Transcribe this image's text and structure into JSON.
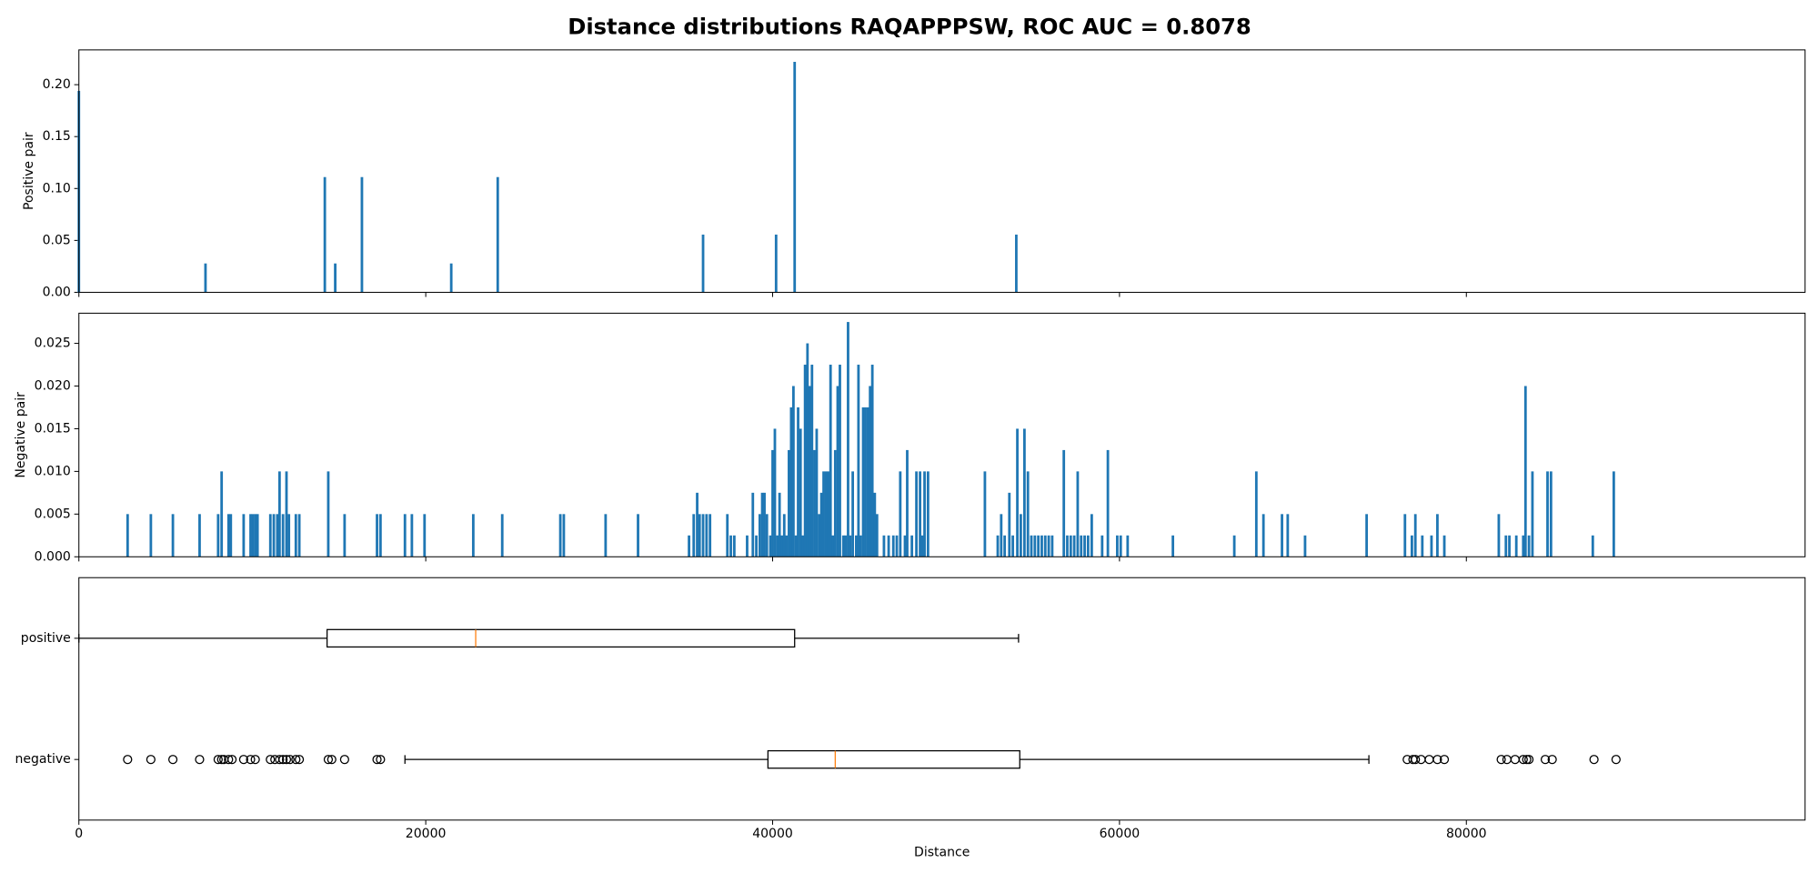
{
  "title": "Distance distributions RAQAPPPSW, ROC AUC = 0.8078",
  "chart_data": [
    {
      "type": "bar",
      "ylabel": "Positive pair",
      "color": "#1f77b4",
      "x": [
        0,
        7300,
        14180,
        14780,
        16320,
        21470,
        24150,
        35990,
        40200,
        41270,
        54050
      ],
      "values": [
        0.194,
        0.0278,
        0.111,
        0.0278,
        0.111,
        0.0278,
        0.111,
        0.0556,
        0.0556,
        0.222,
        0.0556
      ],
      "xlim": [
        0,
        99530
      ],
      "xticks": [
        0,
        20000,
        40000,
        60000,
        80000
      ],
      "ylim": [
        0,
        0.2335
      ],
      "yticks": [
        {
          "value": 0,
          "label": "0.00"
        },
        0.05,
        {
          "value": 0.1,
          "label": "0.10"
        },
        0.15,
        {
          "value": 0.2,
          "label": "0.20"
        }
      ]
    },
    {
      "type": "bar",
      "ylabel": "Negative pair",
      "color": "#1f77b4",
      "x": [
        2810,
        4150,
        5420,
        6960,
        8030,
        8230,
        8630,
        8760,
        9500,
        9900,
        10030,
        10170,
        10300,
        11040,
        11240,
        11440,
        11570,
        11770,
        11970,
        12110,
        12510,
        12710,
        14380,
        15320,
        17190,
        17390,
        18800,
        19200,
        19930,
        22740,
        24410,
        27760,
        27960,
        30370,
        32240,
        35180,
        35450,
        35650,
        35790,
        35990,
        36190,
        36390,
        37390,
        37590,
        37790,
        38530,
        38860,
        39060,
        39260,
        39400,
        39530,
        39670,
        39870,
        40000,
        40130,
        40270,
        40400,
        40540,
        40670,
        40800,
        40940,
        41070,
        41200,
        41340,
        41470,
        41610,
        41740,
        41870,
        42010,
        42140,
        42270,
        42410,
        42540,
        42680,
        42810,
        42940,
        43080,
        43210,
        43340,
        43480,
        43610,
        43750,
        43880,
        44080,
        44210,
        44350,
        44480,
        44620,
        44820,
        44950,
        45080,
        45220,
        45350,
        45490,
        45620,
        45750,
        45890,
        46020,
        46420,
        46690,
        46960,
        47160,
        47360,
        47630,
        47760,
        48030,
        48290,
        48500,
        48630,
        48760,
        48960,
        52240,
        52980,
        53180,
        53380,
        53650,
        53850,
        54110,
        54310,
        54520,
        54720,
        54920,
        55120,
        55320,
        55520,
        55720,
        55920,
        56120,
        56790,
        56990,
        57190,
        57390,
        57590,
        57790,
        57990,
        58190,
        58400,
        59000,
        59330,
        59870,
        60070,
        60470,
        63080,
        66620,
        67890,
        68300,
        69370,
        69700,
        70700,
        74250,
        76460,
        76860,
        77060,
        77460,
        77990,
        78330,
        78730,
        81870,
        82280,
        82480,
        82880,
        83280,
        83410,
        83610,
        83810,
        84680,
        84880,
        87290,
        88500
      ],
      "values": [
        0.005,
        0.005,
        0.005,
        0.005,
        0.005,
        0.01,
        0.005,
        0.005,
        0.005,
        0.005,
        0.005,
        0.005,
        0.005,
        0.005,
        0.005,
        0.005,
        0.01,
        0.005,
        0.01,
        0.005,
        0.005,
        0.005,
        0.01,
        0.005,
        0.005,
        0.005,
        0.005,
        0.005,
        0.005,
        0.005,
        0.005,
        0.005,
        0.005,
        0.005,
        0.005,
        0.0025,
        0.005,
        0.0075,
        0.005,
        0.005,
        0.005,
        0.005,
        0.005,
        0.0025,
        0.0025,
        0.0025,
        0.0075,
        0.0025,
        0.005,
        0.0075,
        0.0075,
        0.005,
        0.0025,
        0.0125,
        0.015,
        0.0025,
        0.0075,
        0.0025,
        0.005,
        0.0025,
        0.0125,
        0.0175,
        0.02,
        0.0025,
        0.0175,
        0.015,
        0.0025,
        0.0225,
        0.025,
        0.02,
        0.0225,
        0.0125,
        0.015,
        0.005,
        0.0075,
        0.01,
        0.01,
        0.01,
        0.0225,
        0.0025,
        0.0125,
        0.02,
        0.0225,
        0.0025,
        0.0025,
        0.0275,
        0.0025,
        0.01,
        0.0025,
        0.0225,
        0.0025,
        0.0175,
        0.0175,
        0.0175,
        0.02,
        0.0225,
        0.0075,
        0.005,
        0.0025,
        0.0025,
        0.0025,
        0.0025,
        0.01,
        0.0025,
        0.0125,
        0.0025,
        0.01,
        0.01,
        0.0025,
        0.01,
        0.01,
        0.01,
        0.0025,
        0.005,
        0.0025,
        0.0075,
        0.0025,
        0.015,
        0.005,
        0.015,
        0.01,
        0.0025,
        0.0025,
        0.0025,
        0.0025,
        0.0025,
        0.0025,
        0.0025,
        0.0125,
        0.0025,
        0.0025,
        0.0025,
        0.01,
        0.0025,
        0.0025,
        0.0025,
        0.005,
        0.0025,
        0.0125,
        0.0025,
        0.0025,
        0.0025,
        0.0025,
        0.0025,
        0.01,
        0.005,
        0.005,
        0.005,
        0.0025,
        0.005,
        0.005,
        0.0025,
        0.005,
        0.0025,
        0.0025,
        0.005,
        0.0025,
        0.005,
        0.0025,
        0.0025,
        0.0025,
        0.0025,
        0.02,
        0.0025,
        0.01,
        0.01,
        0.01,
        0.0025,
        0.01
      ],
      "xlim": [
        0,
        99530
      ],
      "xticks": [
        0,
        20000,
        40000,
        60000,
        80000
      ],
      "ylim": [
        0,
        0.02853
      ],
      "yticks": [
        {
          "value": 0,
          "label": "0.000"
        },
        0.005,
        {
          "value": 0.01,
          "label": "0.010"
        },
        0.015,
        {
          "value": 0.02,
          "label": "0.020"
        },
        0.025
      ]
    },
    {
      "type": "box",
      "xlabel": "Distance",
      "box_color": "#000000",
      "median_color": "#ff7f0e",
      "categories": [
        "positive",
        "negative"
      ],
      "series": [
        {
          "whislo": 0,
          "q1": 14310,
          "med": 22880,
          "q3": 41270,
          "whishi": 54180
        },
        {
          "whislo": 18800,
          "q1": 39730,
          "med": 43610,
          "q3": 54250,
          "whishi": 74380,
          "fliers": [
            2810,
            4150,
            5420,
            6960,
            8030,
            8230,
            8360,
            8630,
            8830,
            9500,
            9900,
            10170,
            11040,
            11300,
            11570,
            11770,
            11970,
            12170,
            12510,
            12710,
            14380,
            14580,
            15320,
            17190,
            17390,
            76590,
            76920,
            77060,
            77390,
            77860,
            78330,
            78730,
            82010,
            82340,
            82810,
            83280,
            83480,
            83610,
            84550,
            84950,
            87360,
            88630
          ]
        }
      ],
      "xlim": [
        0,
        99530
      ],
      "xticks": [
        0,
        20000,
        40000,
        60000,
        80000
      ]
    }
  ]
}
